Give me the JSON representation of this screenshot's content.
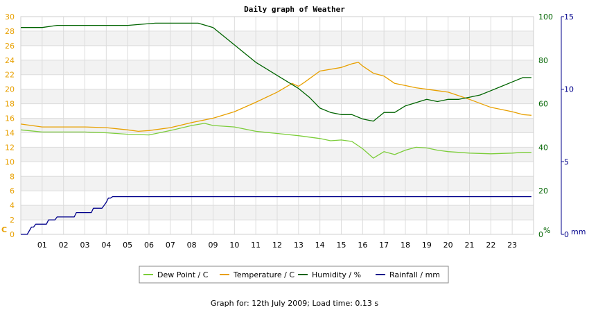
{
  "chart_data": {
    "type": "line",
    "title": "Daily graph of Weather",
    "xaxis": {
      "ticks": [
        "01",
        "02",
        "03",
        "04",
        "05",
        "06",
        "07",
        "08",
        "09",
        "10",
        "11",
        "12",
        "13",
        "14",
        "15",
        "16",
        "17",
        "18",
        "19",
        "20",
        "21",
        "22",
        "23"
      ],
      "range": [
        0,
        24
      ]
    },
    "left_axis": {
      "unit_label": "C",
      "range": [
        0,
        30
      ],
      "ticks": [
        0,
        2,
        4,
        6,
        8,
        10,
        12,
        14,
        16,
        18,
        20,
        22,
        24,
        26,
        28,
        30
      ],
      "color": "#e8a000"
    },
    "middle_axis": {
      "unit_label": "%",
      "range": [
        0,
        100
      ],
      "ticks": [
        0,
        20,
        40,
        60,
        80,
        100
      ],
      "color": "#006400"
    },
    "right_axis": {
      "unit_label": "mm",
      "range": [
        0,
        15
      ],
      "ticks": [
        0,
        5,
        10,
        15
      ],
      "color": "#00008b"
    },
    "grid": true,
    "legend_position": "bottom-center",
    "series": [
      {
        "name": "Dew Point / C",
        "color": "#7ccd3a",
        "axis": "left",
        "points": [
          [
            0,
            14.4
          ],
          [
            1,
            14.1
          ],
          [
            2,
            14.1
          ],
          [
            3,
            14.1
          ],
          [
            4,
            14.0
          ],
          [
            5,
            13.8
          ],
          [
            6,
            13.7
          ],
          [
            7,
            14.3
          ],
          [
            8,
            15.0
          ],
          [
            8.6,
            15.3
          ],
          [
            9,
            15.0
          ],
          [
            10,
            14.8
          ],
          [
            11,
            14.2
          ],
          [
            12,
            13.9
          ],
          [
            13,
            13.6
          ],
          [
            14,
            13.2
          ],
          [
            14.5,
            12.9
          ],
          [
            15,
            13.0
          ],
          [
            15.5,
            12.8
          ],
          [
            16,
            11.8
          ],
          [
            16.5,
            10.5
          ],
          [
            17,
            11.4
          ],
          [
            17.5,
            11.0
          ],
          [
            18,
            11.6
          ],
          [
            18.5,
            12.0
          ],
          [
            19,
            11.9
          ],
          [
            19.5,
            11.6
          ],
          [
            20,
            11.4
          ],
          [
            21,
            11.2
          ],
          [
            22,
            11.1
          ],
          [
            23,
            11.2
          ],
          [
            23.5,
            11.3
          ],
          [
            23.9,
            11.3
          ]
        ]
      },
      {
        "name": "Temperature / C",
        "color": "#e8a000",
        "axis": "left",
        "points": [
          [
            0,
            15.2
          ],
          [
            1,
            14.8
          ],
          [
            2,
            14.8
          ],
          [
            3,
            14.8
          ],
          [
            4,
            14.7
          ],
          [
            5,
            14.4
          ],
          [
            5.5,
            14.2
          ],
          [
            6,
            14.3
          ],
          [
            7,
            14.7
          ],
          [
            8,
            15.4
          ],
          [
            9,
            16.0
          ],
          [
            10,
            16.9
          ],
          [
            11,
            18.2
          ],
          [
            12,
            19.6
          ],
          [
            12.7,
            20.8
          ],
          [
            13,
            20.4
          ],
          [
            13.3,
            21.0
          ],
          [
            14,
            22.5
          ],
          [
            15,
            23.0
          ],
          [
            15.5,
            23.5
          ],
          [
            15.8,
            23.7
          ],
          [
            16,
            23.2
          ],
          [
            16.5,
            22.2
          ],
          [
            17,
            21.8
          ],
          [
            17.5,
            20.8
          ],
          [
            18,
            20.5
          ],
          [
            18.5,
            20.2
          ],
          [
            19,
            20.0
          ],
          [
            20,
            19.6
          ],
          [
            21,
            18.6
          ],
          [
            22,
            17.5
          ],
          [
            23,
            16.9
          ],
          [
            23.5,
            16.5
          ],
          [
            23.9,
            16.4
          ]
        ]
      },
      {
        "name": "Humidity / %",
        "color": "#006400",
        "axis": "middle",
        "points": [
          [
            0,
            95
          ],
          [
            1,
            95
          ],
          [
            1.7,
            96
          ],
          [
            3,
            96
          ],
          [
            4,
            96
          ],
          [
            5,
            96
          ],
          [
            6.3,
            97
          ],
          [
            7,
            97
          ],
          [
            8.3,
            97
          ],
          [
            9,
            95
          ],
          [
            10,
            87
          ],
          [
            10.5,
            83
          ],
          [
            11,
            79
          ],
          [
            12,
            73
          ],
          [
            12.5,
            70
          ],
          [
            13,
            67
          ],
          [
            13.5,
            63
          ],
          [
            14,
            58
          ],
          [
            14.5,
            56
          ],
          [
            15,
            55
          ],
          [
            15.5,
            55
          ],
          [
            16,
            53
          ],
          [
            16.5,
            52
          ],
          [
            17,
            56
          ],
          [
            17.5,
            56
          ],
          [
            18,
            59
          ],
          [
            19,
            62
          ],
          [
            19.5,
            61
          ],
          [
            20,
            62
          ],
          [
            20.5,
            62
          ],
          [
            21,
            63
          ],
          [
            21.5,
            64
          ],
          [
            22,
            66
          ],
          [
            22.5,
            68
          ],
          [
            23,
            70
          ],
          [
            23.5,
            72
          ],
          [
            23.9,
            72
          ]
        ]
      },
      {
        "name": "Rainfall / mm",
        "color": "#00008b",
        "axis": "right",
        "points": [
          [
            0,
            0
          ],
          [
            0.3,
            0
          ],
          [
            0.5,
            0.5
          ],
          [
            0.6,
            0.5
          ],
          [
            0.7,
            0.7
          ],
          [
            1.2,
            0.7
          ],
          [
            1.3,
            1.0
          ],
          [
            1.6,
            1.0
          ],
          [
            1.7,
            1.2
          ],
          [
            2.5,
            1.2
          ],
          [
            2.6,
            1.5
          ],
          [
            3.3,
            1.5
          ],
          [
            3.4,
            1.8
          ],
          [
            3.8,
            1.8
          ],
          [
            3.9,
            2.0
          ],
          [
            4.0,
            2.2
          ],
          [
            4.1,
            2.5
          ],
          [
            4.2,
            2.5
          ],
          [
            4.3,
            2.6
          ],
          [
            23.9,
            2.6
          ]
        ]
      }
    ]
  },
  "footer_text": "Graph for: 12th July 2009; Load time: 0.13 s"
}
